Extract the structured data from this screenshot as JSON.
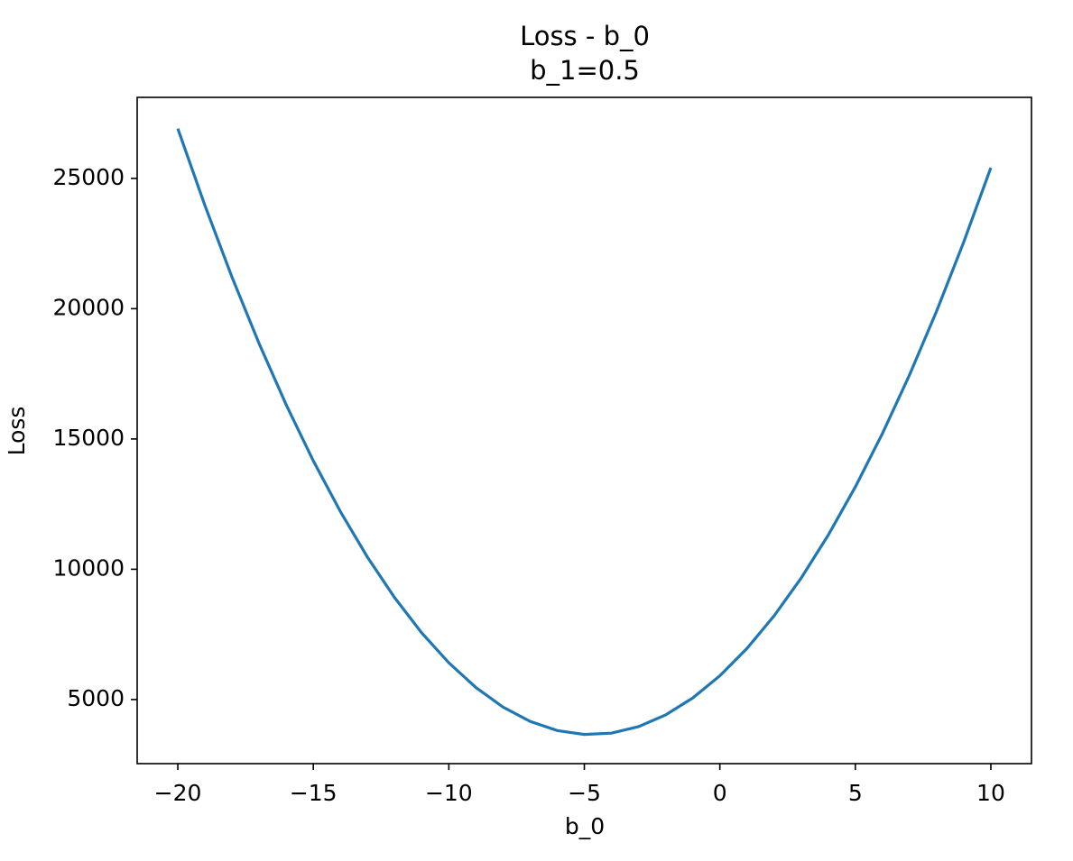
{
  "chart_data": {
    "type": "line",
    "title": "Loss - b_0",
    "subtitle": "b_1=0.5",
    "x_label": "b_0",
    "y_label": "Loss",
    "x": [
      -20,
      -19,
      -18,
      -17,
      -16,
      -15,
      -14,
      -13,
      -12,
      -11,
      -10,
      -9,
      -8,
      -7,
      -6,
      -5,
      -4,
      -3,
      -2,
      -1,
      0,
      1,
      2,
      3,
      4,
      5,
      6,
      7,
      8,
      9,
      10
    ],
    "series": [
      {
        "color": "#1f77b4",
        "values": [
          26910,
          23960,
          21210,
          18660,
          16310,
          14160,
          12210,
          10460,
          8910,
          7560,
          6410,
          5460,
          4710,
          4160,
          3810,
          3660,
          3710,
          3960,
          4410,
          5060,
          5910,
          6960,
          8210,
          9660,
          11310,
          13160,
          15210,
          17460,
          19910,
          22560,
          25410
        ]
      }
    ],
    "xlim": [
      -21.5,
      11.5
    ],
    "ylim": [
      2540,
      28110
    ],
    "xticks": [
      {
        "value": -20,
        "label": "−20"
      },
      {
        "value": -15,
        "label": "−15"
      },
      {
        "value": -10,
        "label": "−10"
      },
      {
        "value": -5,
        "label": "−5"
      },
      0,
      5,
      10
    ],
    "yticks": [
      5000,
      10000,
      15000,
      20000,
      25000
    ],
    "grid": false
  }
}
